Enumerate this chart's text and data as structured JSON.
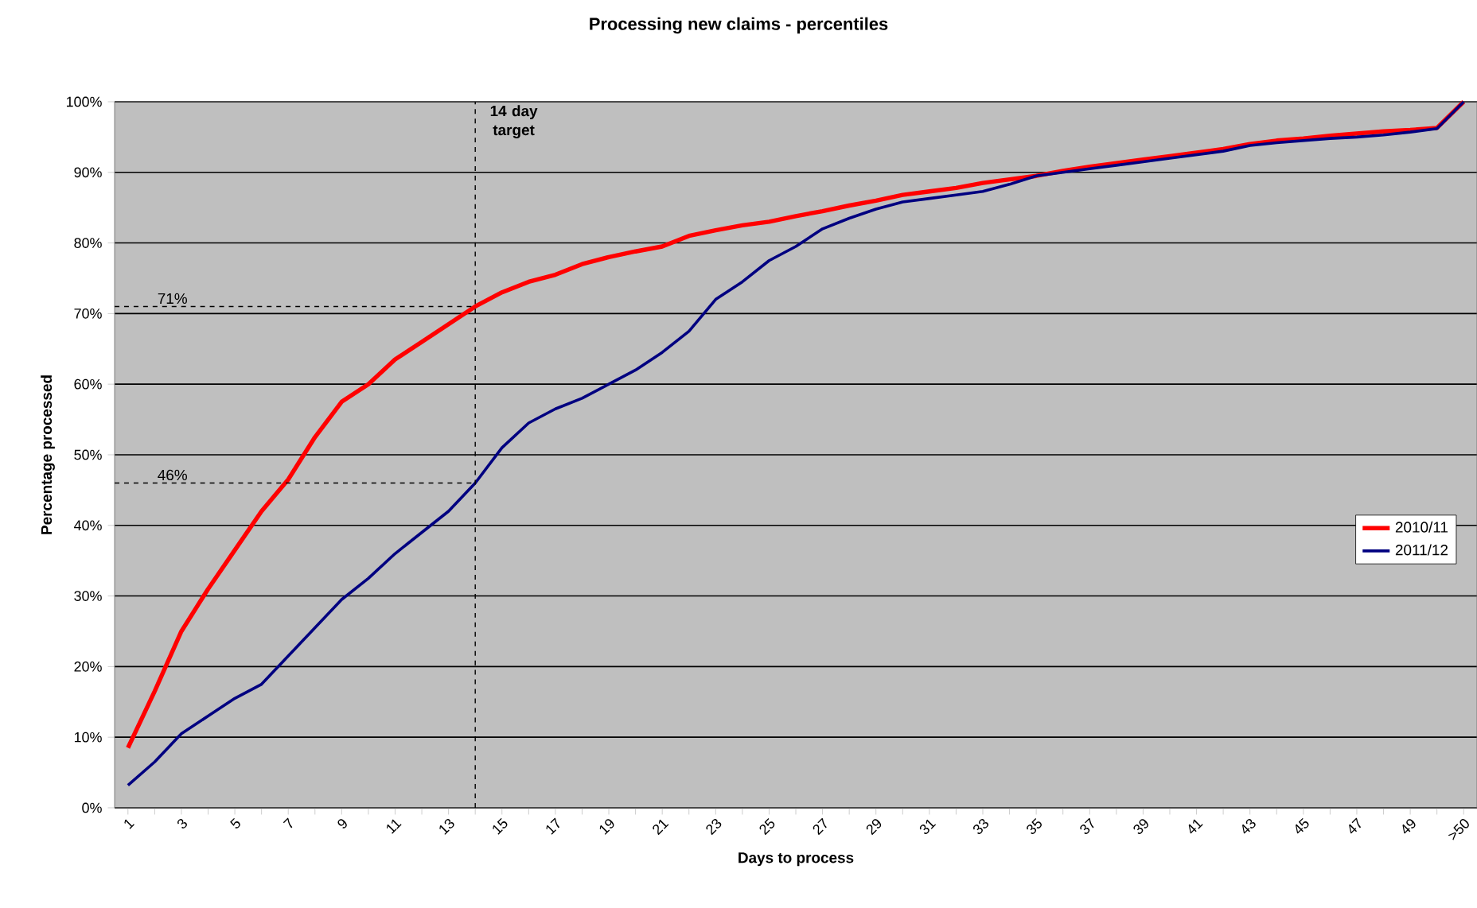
{
  "chart_data": {
    "type": "line",
    "title": "Processing new claims - percentiles",
    "xlabel": "Days to process",
    "ylabel": "Percentage processed",
    "x": [
      1,
      2,
      3,
      4,
      5,
      6,
      7,
      8,
      9,
      10,
      11,
      12,
      13,
      14,
      15,
      16,
      17,
      18,
      19,
      20,
      21,
      22,
      23,
      24,
      25,
      26,
      27,
      28,
      29,
      30,
      31,
      32,
      33,
      34,
      35,
      36,
      37,
      38,
      39,
      40,
      41,
      42,
      43,
      44,
      45,
      46,
      47,
      48,
      49,
      50,
      51
    ],
    "series": [
      {
        "name": "2010/11",
        "color": "#ff0000",
        "values": [
          8.5,
          16.5,
          25,
          31,
          36.5,
          42,
          46.5,
          52.5,
          57.5,
          60,
          63.5,
          66,
          68.5,
          71,
          73,
          74.5,
          75.5,
          77,
          78,
          78.8,
          79.5,
          81,
          81.8,
          82.5,
          83,
          83.8,
          84.5,
          85.3,
          86,
          86.8,
          87.3,
          87.8,
          88.5,
          89,
          89.5,
          90.2,
          90.8,
          91.3,
          91.8,
          92.3,
          92.8,
          93.3,
          94,
          94.5,
          94.8,
          95.2,
          95.5,
          95.8,
          96,
          96.3,
          100
        ]
      },
      {
        "name": "2011/12",
        "color": "#000080",
        "values": [
          3.2,
          6.5,
          10.5,
          13,
          15.5,
          17.5,
          21.5,
          25.5,
          29.5,
          32.5,
          36,
          39,
          42,
          46,
          51,
          54.5,
          56.5,
          58,
          60,
          62,
          64.5,
          67.5,
          72,
          74.5,
          77.5,
          79.5,
          82,
          83.5,
          84.8,
          85.8,
          86.3,
          86.8,
          87.3,
          88.3,
          89.5,
          90,
          90.5,
          91,
          91.5,
          92,
          92.5,
          93,
          93.8,
          94.2,
          94.5,
          94.8,
          95,
          95.3,
          95.7,
          96.2,
          100
        ]
      }
    ],
    "xlim": [
      0.5,
      51.5
    ],
    "xticks": [
      1,
      {
        "value": 2,
        "label": null
      },
      3,
      {
        "value": 4,
        "label": null
      },
      5,
      {
        "value": 6,
        "label": null
      },
      7,
      {
        "value": 8,
        "label": null
      },
      9,
      {
        "value": 10,
        "label": null
      },
      11,
      {
        "value": 12,
        "label": null
      },
      13,
      {
        "value": 14,
        "label": null
      },
      15,
      {
        "value": 16,
        "label": null
      },
      17,
      {
        "value": 18,
        "label": null
      },
      19,
      {
        "value": 20,
        "label": null
      },
      21,
      {
        "value": 22,
        "label": null
      },
      23,
      {
        "value": 24,
        "label": null
      },
      25,
      {
        "value": 26,
        "label": null
      },
      27,
      {
        "value": 28,
        "label": null
      },
      29,
      {
        "value": 30,
        "label": null
      },
      31,
      {
        "value": 32,
        "label": null
      },
      33,
      {
        "value": 34,
        "label": null
      },
      35,
      {
        "value": 36,
        "label": null
      },
      37,
      {
        "value": 38,
        "label": null
      },
      39,
      {
        "value": 40,
        "label": null
      },
      41,
      {
        "value": 42,
        "label": null
      },
      43,
      {
        "value": 44,
        "label": null
      },
      45,
      {
        "value": 46,
        "label": null
      },
      47,
      {
        "value": 48,
        "label": null
      },
      49,
      {
        "value": 50,
        "label": null
      },
      {
        "value": 51,
        "label": ">50"
      }
    ],
    "ylim": [
      0,
      100
    ],
    "yticks": [
      {
        "value": 0,
        "label": "0%"
      },
      {
        "value": 10,
        "label": "10%"
      },
      {
        "value": 20,
        "label": "20%"
      },
      {
        "value": 30,
        "label": "30%"
      },
      {
        "value": 40,
        "label": "40%"
      },
      {
        "value": 50,
        "label": "50%"
      },
      {
        "value": 60,
        "label": "60%"
      },
      {
        "value": 70,
        "label": "70%"
      },
      {
        "value": 80,
        "label": "80%"
      },
      {
        "value": 90,
        "label": "90%"
      },
      {
        "value": 100,
        "label": "100%"
      }
    ],
    "ref_lines": [
      {
        "axis": "x",
        "value": 14,
        "label": "14 day target",
        "line_style": "dashed"
      },
      {
        "axis": "y",
        "value": 71,
        "label": "71%",
        "line_style": "dashed"
      },
      {
        "axis": "y",
        "value": 46,
        "label": "46%",
        "line_style": "dashed"
      }
    ],
    "grid": "y",
    "legend": "right",
    "line_style": "solid",
    "marker": "none"
  }
}
